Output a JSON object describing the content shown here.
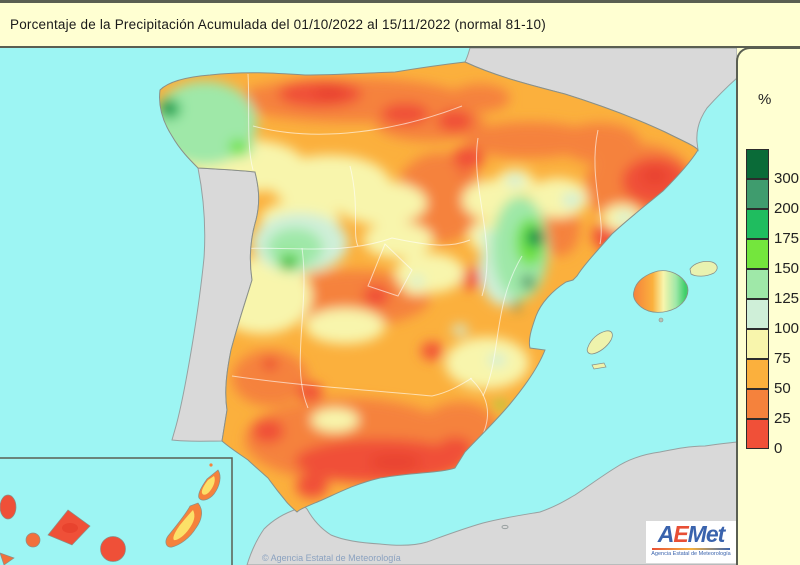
{
  "title_bar": {
    "title": "Porcentaje de la Precipitación Acumulada del 01/10/2022 al 15/11/2022 (normal 81-10)"
  },
  "legend": {
    "unit": "%",
    "steps": [
      {
        "label": "300",
        "color": "#0a6b38"
      },
      {
        "label": "200",
        "color": "#3f9c6e"
      },
      {
        "label": "175",
        "color": "#1fbd5f"
      },
      {
        "label": "150",
        "color": "#74e63d"
      },
      {
        "label": "125",
        "color": "#9fe8a8"
      },
      {
        "label": "100",
        "color": "#cfefd8"
      },
      {
        "label": "75",
        "color": "#f8f5ac"
      },
      {
        "label": "50",
        "color": "#fbb03d"
      },
      {
        "label": "25",
        "color": "#f5823c"
      },
      {
        "label": "0",
        "color": "#f05038"
      }
    ]
  },
  "map": {
    "attribution": "© Agencia Estatal de Meteorología",
    "colors": {
      "bg": "#ffffd2",
      "frame": "#5a5f52",
      "sea": "#9df5f3",
      "noData": "#d9d9d9",
      "baseLand": "#fbb03d"
    }
  },
  "logo": {
    "a": "A",
    "e": "E",
    "met": "Met",
    "subtitle": "Agencia Estatal de Meteorología"
  }
}
